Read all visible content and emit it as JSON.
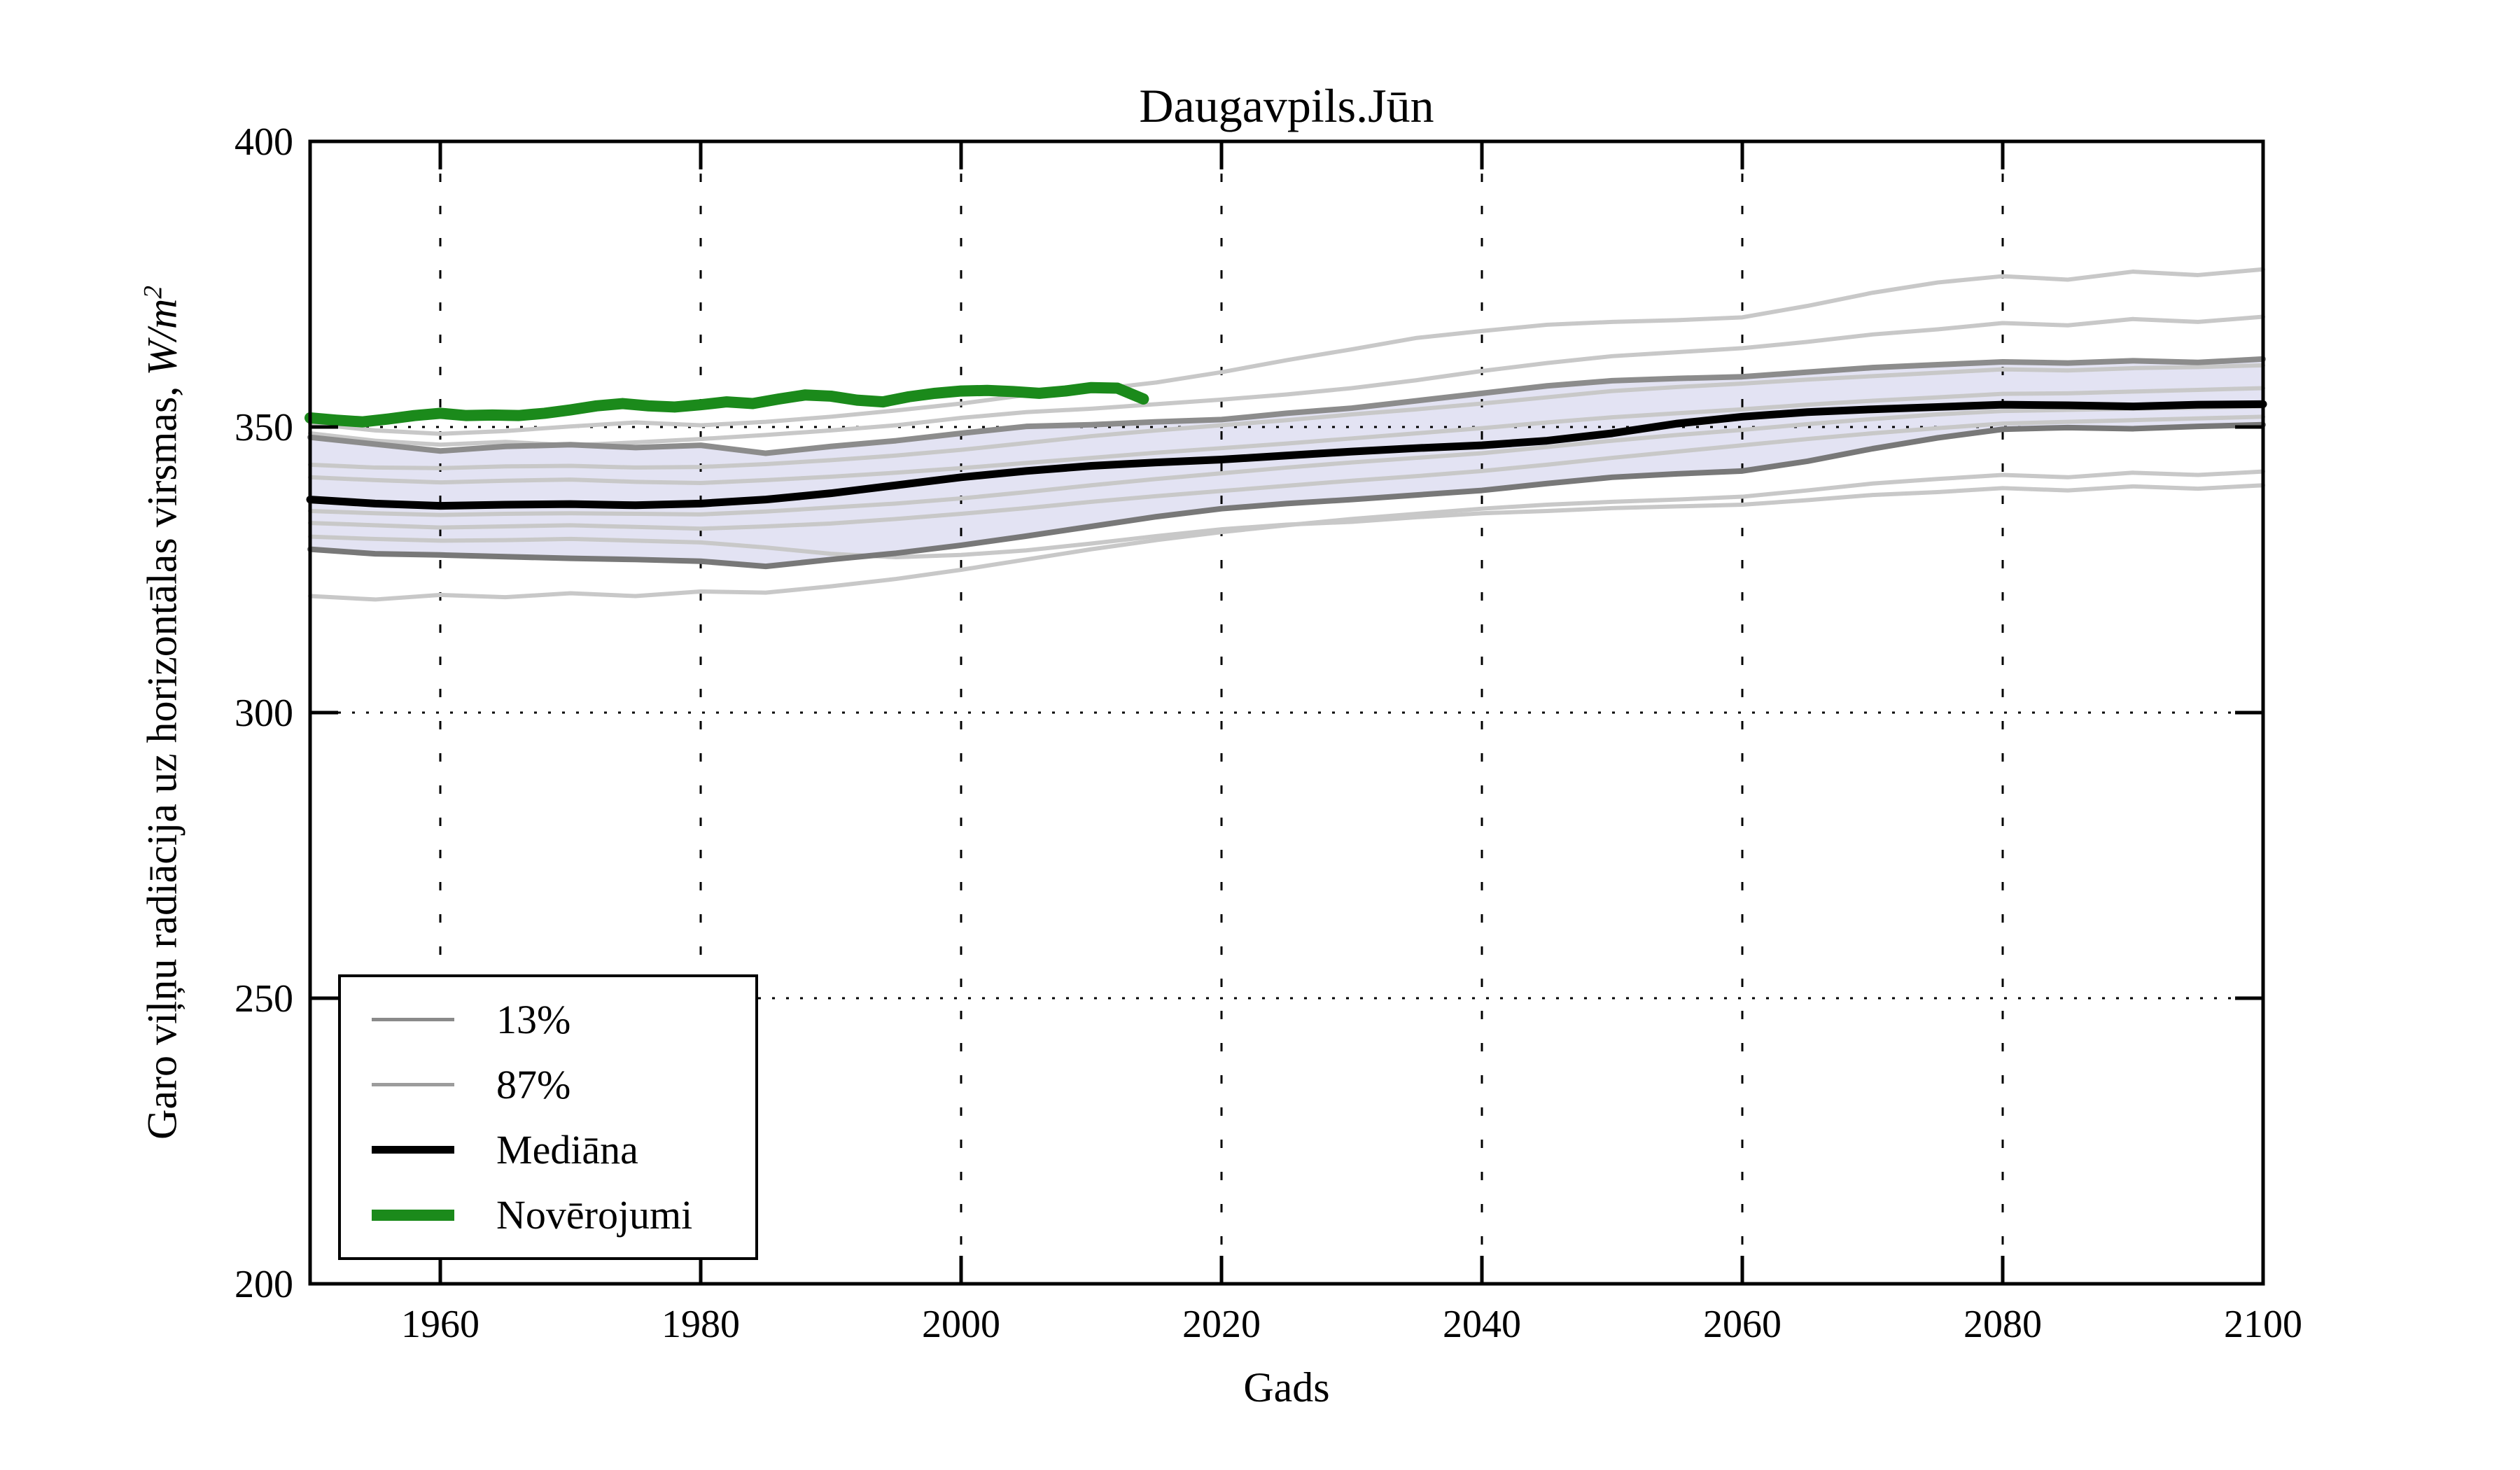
{
  "figure": {
    "title": "Daugavpils.Jūn",
    "xlabel": "Gads",
    "ylabel_text": "Garo viļņu radiācija uz horizontālas virsmas, ",
    "ylabel_unit": "W/m",
    "ylabel_sup": "2"
  },
  "axes": {
    "x_ticks": [
      1960,
      1980,
      2000,
      2020,
      2040,
      2060,
      2080,
      2100
    ],
    "y_ticks": [
      200,
      250,
      300,
      350,
      400
    ],
    "xlim": [
      1950,
      2100
    ],
    "ylim": [
      200,
      400
    ]
  },
  "legend": {
    "items": [
      {
        "label": "13%",
        "color": "#8a8a8a",
        "thickness": 5
      },
      {
        "label": "87%",
        "color": "#9c9c9c",
        "thickness": 5
      },
      {
        "label": "Mediāna",
        "color": "#000000",
        "thickness": 11
      },
      {
        "label": "Novērojumi",
        "color": "#1b8a1b",
        "thickness": 16
      }
    ]
  },
  "colors": {
    "background": "#ffffff",
    "spine": "#000000",
    "grid": "#000000",
    "band_fill": "rgba(162,162,214,0.30)",
    "ensemble_gray": "#c8c8c8",
    "percentile_low": "#787878",
    "percentile_high": "#8c8c8c",
    "median": "#000000",
    "observations": "#1b8a1b"
  },
  "chart_data": {
    "type": "line",
    "title": "Daugavpils.Jūn",
    "xlabel": "Gads",
    "ylabel": "Garo viļņu radiācija uz horizontālas virsmas, W/m²",
    "xlim": [
      1950,
      2100
    ],
    "ylim": [
      200,
      400
    ],
    "grid": {
      "x_dashed": [
        1960,
        1980,
        2000,
        2020,
        2040,
        2060,
        2080
      ],
      "y_dotted": [
        250,
        300,
        350
      ]
    },
    "legend_position": "lower-left",
    "band": {
      "between": [
        "13%",
        "87%"
      ],
      "fill": "rgba(162,162,214,0.30)"
    },
    "x_model": [
      1950,
      1955,
      1960,
      1965,
      1970,
      1975,
      1980,
      1985,
      1990,
      1995,
      2000,
      2005,
      2010,
      2015,
      2020,
      2025,
      2030,
      2035,
      2040,
      2045,
      2050,
      2055,
      2060,
      2065,
      2070,
      2075,
      2080,
      2085,
      2090,
      2095,
      2100
    ],
    "series": [
      {
        "name": "13%",
        "role": "percentile-low",
        "color": "#787878",
        "width": 8,
        "values": [
          328.6,
          327.8,
          327.6,
          327.3,
          327.0,
          326.8,
          326.5,
          325.6,
          326.8,
          327.9,
          329.3,
          330.9,
          332.6,
          334.3,
          335.7,
          336.6,
          337.3,
          338.1,
          338.9,
          340.1,
          341.2,
          341.8,
          342.3,
          344.0,
          346.2,
          348.1,
          349.6,
          349.9,
          349.7,
          350.1,
          350.4
        ]
      },
      {
        "name": "87%",
        "role": "percentile-high",
        "color": "#8c8c8c",
        "width": 8,
        "values": [
          348.2,
          347.0,
          345.8,
          346.6,
          346.9,
          346.4,
          346.8,
          345.4,
          346.6,
          347.6,
          348.9,
          350.1,
          350.4,
          350.9,
          351.3,
          352.4,
          353.3,
          354.6,
          355.9,
          357.2,
          358.1,
          358.5,
          358.8,
          359.6,
          360.4,
          360.9,
          361.4,
          361.2,
          361.6,
          361.3,
          361.9
        ]
      },
      {
        "name": "Mediāna",
        "role": "median",
        "color": "#000000",
        "width": 11,
        "values": [
          337.3,
          336.6,
          336.2,
          336.4,
          336.5,
          336.3,
          336.6,
          337.3,
          338.4,
          339.8,
          341.2,
          342.3,
          343.2,
          343.8,
          344.3,
          345.0,
          345.7,
          346.3,
          346.8,
          347.6,
          348.9,
          350.6,
          351.8,
          352.6,
          353.1,
          353.5,
          353.9,
          353.8,
          353.6,
          353.9,
          354.0
        ]
      },
      {
        "name": "ensemble-member-1",
        "role": "ensemble",
        "color": "#c8c8c8",
        "width": 6,
        "values": [
          350.6,
          349.4,
          348.8,
          349.3,
          350.1,
          350.8,
          350.3,
          350.9,
          351.8,
          352.9,
          354.1,
          355.6,
          356.5,
          357.8,
          359.6,
          361.7,
          363.6,
          365.6,
          366.8,
          367.9,
          368.4,
          368.7,
          369.2,
          371.2,
          373.5,
          375.3,
          376.4,
          375.8,
          377.2,
          376.6,
          377.6
        ]
      },
      {
        "name": "ensemble-member-2",
        "role": "ensemble",
        "color": "#c8c8c8",
        "width": 6,
        "values": [
          348.9,
          347.6,
          346.9,
          347.4,
          346.8,
          347.3,
          347.9,
          348.6,
          349.4,
          350.3,
          351.6,
          352.6,
          353.2,
          354.0,
          354.8,
          355.7,
          356.8,
          358.2,
          359.8,
          361.2,
          362.4,
          363.1,
          363.8,
          364.9,
          366.2,
          367.1,
          368.2,
          367.8,
          368.9,
          368.4,
          369.3
        ]
      },
      {
        "name": "ensemble-member-3",
        "role": "ensemble",
        "color": "#c8c8c8",
        "width": 6,
        "values": [
          343.4,
          342.9,
          342.8,
          343.1,
          343.2,
          342.9,
          343.0,
          343.5,
          344.2,
          345.0,
          346.0,
          347.2,
          348.4,
          349.4,
          350.3,
          351.2,
          352.2,
          353.1,
          354.1,
          355.2,
          356.3,
          357.0,
          357.6,
          358.3,
          358.9,
          359.5,
          360.1,
          359.9,
          360.3,
          360.5,
          360.8
        ]
      },
      {
        "name": "ensemble-member-4",
        "role": "ensemble",
        "color": "#c8c8c8",
        "width": 6,
        "values": [
          341.2,
          340.7,
          340.3,
          340.6,
          340.8,
          340.4,
          340.2,
          340.7,
          341.3,
          342.0,
          342.8,
          343.7,
          344.6,
          345.5,
          346.3,
          347.1,
          348.0,
          348.9,
          349.8,
          350.8,
          351.7,
          352.4,
          353.1,
          353.9,
          354.6,
          355.2,
          355.8,
          355.9,
          356.2,
          356.5,
          356.8
        ]
      },
      {
        "name": "ensemble-member-5",
        "role": "ensemble",
        "color": "#c8c8c8",
        "width": 6,
        "values": [
          335.3,
          334.9,
          334.6,
          334.8,
          334.9,
          334.8,
          334.7,
          335.2,
          335.9,
          336.6,
          337.5,
          338.6,
          339.8,
          340.9,
          341.9,
          342.9,
          343.8,
          344.6,
          345.4,
          346.5,
          347.6,
          348.6,
          349.5,
          350.5,
          351.4,
          352.2,
          352.8,
          353.0,
          353.2,
          353.4,
          353.6
        ]
      },
      {
        "name": "ensemble-member-6",
        "role": "ensemble",
        "color": "#c8c8c8",
        "width": 6,
        "values": [
          333.2,
          332.8,
          332.4,
          332.6,
          332.8,
          332.5,
          332.2,
          332.6,
          333.1,
          333.9,
          334.8,
          335.8,
          336.9,
          337.9,
          338.8,
          339.7,
          340.6,
          341.4,
          342.3,
          343.4,
          344.6,
          345.7,
          346.8,
          347.9,
          348.9,
          349.8,
          350.6,
          350.9,
          351.2,
          351.5,
          351.8
        ]
      },
      {
        "name": "ensemble-member-7",
        "role": "ensemble",
        "color": "#c8c8c8",
        "width": 6,
        "values": [
          320.4,
          319.8,
          320.6,
          320.2,
          320.9,
          320.4,
          321.2,
          321.0,
          322.1,
          323.4,
          325.0,
          326.8,
          328.6,
          330.2,
          331.6,
          332.8,
          333.9,
          334.8,
          335.7,
          336.4,
          336.9,
          337.3,
          337.8,
          338.9,
          340.1,
          340.9,
          341.6,
          341.2,
          342.0,
          341.6,
          342.2
        ]
      },
      {
        "name": "ensemble-member-8",
        "role": "ensemble",
        "color": "#c8c8c8",
        "width": 6,
        "values": [
          330.8,
          330.4,
          330.1,
          330.2,
          330.4,
          330.1,
          329.8,
          328.9,
          327.8,
          327.2,
          327.6,
          328.4,
          329.6,
          330.9,
          332.1,
          332.9,
          333.4,
          334.2,
          334.9,
          335.3,
          335.8,
          336.1,
          336.4,
          337.2,
          338.1,
          338.6,
          339.3,
          338.9,
          339.6,
          339.2,
          339.8
        ]
      }
    ],
    "observations": {
      "name": "Novērojumi",
      "color": "#1b8a1b",
      "width": 16,
      "x": [
        1950,
        1952,
        1954,
        1956,
        1958,
        1960,
        1962,
        1964,
        1966,
        1968,
        1970,
        1972,
        1974,
        1976,
        1978,
        1980,
        1982,
        1984,
        1986,
        1988,
        1990,
        1992,
        1994,
        1996,
        1998,
        2000,
        2002,
        2004,
        2006,
        2008,
        2010,
        2012,
        2014
      ],
      "values": [
        351.6,
        351.2,
        350.9,
        351.4,
        352.0,
        352.4,
        352.0,
        352.1,
        352.0,
        352.4,
        353.0,
        353.7,
        354.1,
        353.7,
        353.5,
        353.9,
        354.4,
        354.1,
        354.9,
        355.6,
        355.4,
        354.7,
        354.4,
        355.3,
        355.9,
        356.3,
        356.4,
        356.2,
        355.9,
        356.3,
        356.9,
        356.8,
        354.9
      ]
    }
  }
}
